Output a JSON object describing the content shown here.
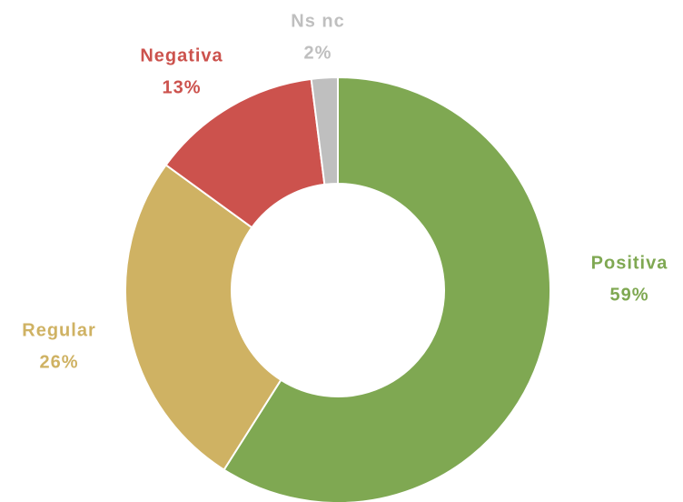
{
  "chart_data": {
    "type": "donut",
    "categories": [
      "Positiva",
      "Regular",
      "Negativa",
      "Ns nc"
    ],
    "values": [
      59,
      26,
      13,
      2
    ],
    "value_labels": [
      "59%",
      "26%",
      "13%",
      "2%"
    ],
    "colors": [
      "#7fa852",
      "#cfb263",
      "#cc524d",
      "#bfbfbf"
    ]
  }
}
